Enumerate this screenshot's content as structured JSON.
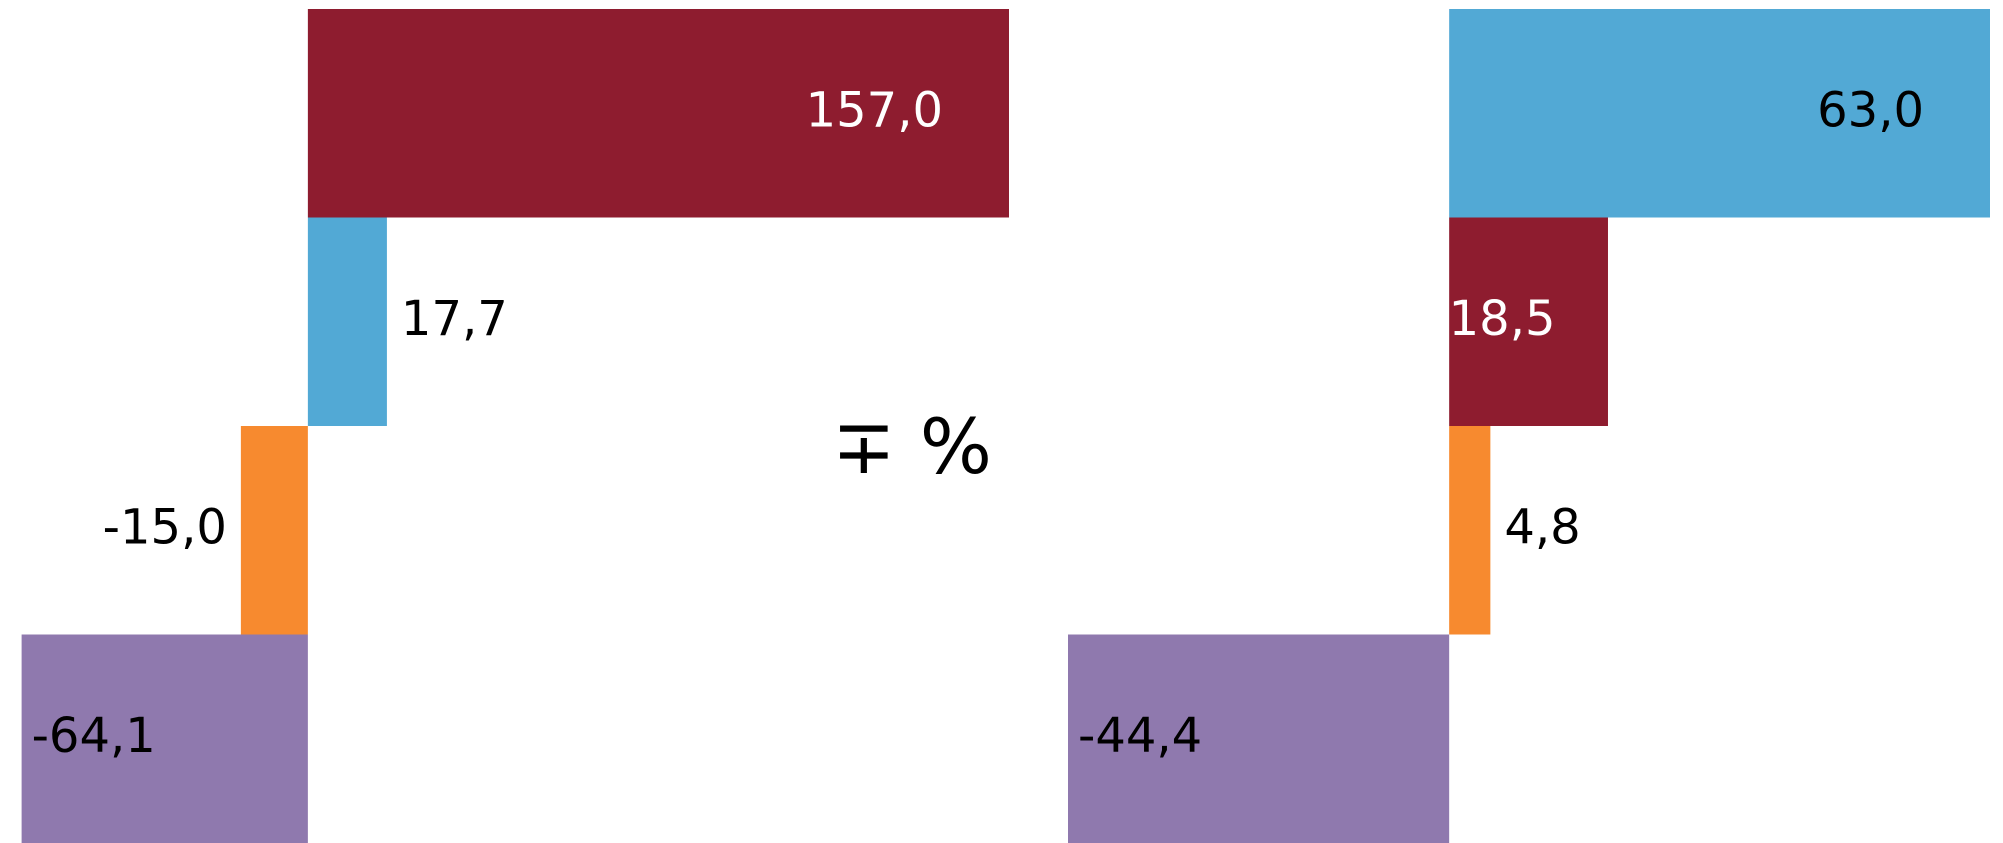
{
  "annotation": "∓ %",
  "chart_data": [
    {
      "type": "bar",
      "orientation": "horizontal",
      "values": [
        157.0,
        17.7,
        -15.0,
        -64.1
      ],
      "value_labels": [
        "157,0",
        "17,7",
        "-15,0",
        "-64,1"
      ],
      "colors": [
        "#8e1c2f",
        "#52a9d5",
        "#f78a2f",
        "#8f79ae"
      ],
      "xlim": [
        -66.7,
        157
      ]
    },
    {
      "type": "bar",
      "orientation": "horizontal",
      "values": [
        63.0,
        18.5,
        4.8,
        -44.4
      ],
      "value_labels": [
        "63,0",
        "18,5",
        "4,8",
        "-44,4"
      ],
      "colors": [
        "#52a9d5",
        "#8e1c2f",
        "#f78a2f",
        "#8f79ae"
      ],
      "xlim": [
        -44.4,
        63
      ]
    }
  ]
}
